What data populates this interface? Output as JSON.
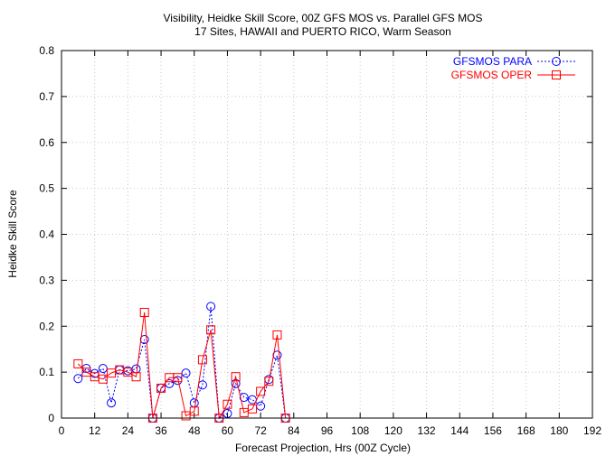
{
  "chart_data": {
    "type": "line",
    "title": "Visibility, Heidke Skill Score, 00Z GFS MOS vs. Parallel GFS MOS",
    "subtitle": "17 Sites, HAWAII and PUERTO RICO, Warm Season",
    "xlabel": "Forecast Projection, Hrs (00Z Cycle)",
    "ylabel": "Heidke Skill Score",
    "xlim": [
      0,
      192
    ],
    "ylim": [
      0,
      0.8
    ],
    "xticks": [
      0,
      12,
      24,
      36,
      48,
      60,
      72,
      84,
      96,
      108,
      120,
      132,
      144,
      156,
      168,
      180,
      192
    ],
    "yticks": [
      0,
      0.1,
      0.2,
      0.3,
      0.4,
      0.5,
      0.6,
      0.7,
      0.8
    ],
    "grid": true,
    "legend_position": "top-right",
    "series": [
      {
        "name": "GFSMOS PARA",
        "color": "#0000ff",
        "line_style": "dotted",
        "marker": "circle",
        "x": [
          6,
          9,
          12,
          15,
          18,
          21,
          24,
          27,
          30,
          33,
          36,
          39,
          42,
          45,
          48,
          51,
          54,
          57,
          60,
          63,
          66,
          69,
          72,
          75,
          78,
          81
        ],
        "y": [
          0.086,
          0.108,
          0.097,
          0.108,
          0.033,
          0.105,
          0.103,
          0.107,
          0.171,
          0.0,
          0.065,
          0.075,
          0.082,
          0.098,
          0.033,
          0.072,
          0.243,
          0.0,
          0.01,
          0.075,
          0.045,
          0.04,
          0.026,
          0.084,
          0.137,
          0.0
        ]
      },
      {
        "name": "GFSMOS OPER",
        "color": "#ff0000",
        "line_style": "solid",
        "marker": "square",
        "x": [
          6,
          9,
          12,
          15,
          18,
          21,
          24,
          27,
          30,
          33,
          36,
          39,
          42,
          45,
          48,
          51,
          54,
          57,
          60,
          63,
          66,
          69,
          72,
          75,
          78,
          81
        ],
        "y": [
          0.118,
          0.1,
          0.09,
          0.085,
          0.098,
          0.105,
          0.1,
          0.09,
          0.23,
          0.0,
          0.065,
          0.088,
          0.088,
          0.005,
          0.015,
          0.127,
          0.192,
          0.0,
          0.03,
          0.09,
          0.012,
          0.02,
          0.058,
          0.08,
          0.181,
          0.0
        ]
      }
    ]
  }
}
